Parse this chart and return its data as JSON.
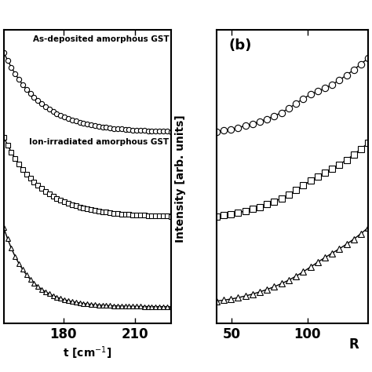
{
  "panel_b_label": "(b)",
  "xlabel_a": "t [cm$^{-1}$]",
  "xlabel_b": "R",
  "ylabel": "Intensity [arb. units]",
  "xlim_a": [
    155,
    225
  ],
  "xlim_b": [
    40,
    140
  ],
  "xticks_a": [
    180,
    210
  ],
  "xticks_b": [
    50,
    100
  ],
  "label_circle": "As-deposited amorphous GST",
  "label_square": "Ion-irradiated amorphous GST",
  "background": "#ffffff",
  "line_color": "#000000",
  "marker_color": "#ffffff",
  "marker_edge_color": "#000000",
  "figsize": [
    4.74,
    4.74
  ],
  "dpi": 100
}
